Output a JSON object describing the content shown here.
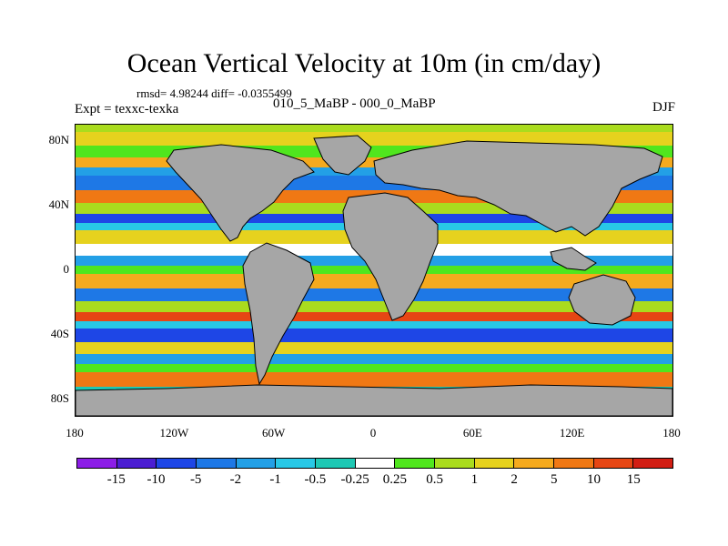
{
  "title": "Ocean Vertical Velocity at 10m (in cm/day)",
  "stats": "rmsd= 4.98244 diff= -0.0355499",
  "experiment": "Expt = texxc-texka",
  "case": "010_5_MaBP - 000_0_MaBP",
  "season": "DJF",
  "map": {
    "projection": "cylindrical equidistant",
    "lon_range": [
      -180,
      180
    ],
    "lat_range": [
      -90,
      90
    ],
    "land_color": "#a6a6a6",
    "ocean_background_color": "#9aa6bd",
    "lat_ticks": [
      {
        "value": 80,
        "label": "80N"
      },
      {
        "value": 40,
        "label": "40N"
      },
      {
        "value": 0,
        "label": "0"
      },
      {
        "value": -40,
        "label": "40S"
      },
      {
        "value": -80,
        "label": "80S"
      }
    ],
    "lon_ticks": [
      {
        "value": -180,
        "label": "180"
      },
      {
        "value": -120,
        "label": "120W"
      },
      {
        "value": -60,
        "label": "60W"
      },
      {
        "value": 0,
        "label": "0"
      },
      {
        "value": 60,
        "label": "60E"
      },
      {
        "value": 120,
        "label": "120E"
      },
      {
        "value": 180,
        "label": "180"
      }
    ]
  },
  "colorbar": {
    "labels": [
      "-15",
      "-10",
      "-5",
      "-2",
      "-1",
      "-0.5",
      "-0.25",
      "0.25",
      "0.5",
      "1",
      "2",
      "5",
      "10",
      "15"
    ],
    "colors": [
      "#8c1ee6",
      "#4b1ed2",
      "#1e46e6",
      "#1e78e6",
      "#23a0e6",
      "#28c8e6",
      "#1ec8b4",
      "#ffffff",
      "#50e61e",
      "#aadc1e",
      "#e6d21e",
      "#f5aa1e",
      "#f07814",
      "#e64614",
      "#d21e14"
    ]
  }
}
